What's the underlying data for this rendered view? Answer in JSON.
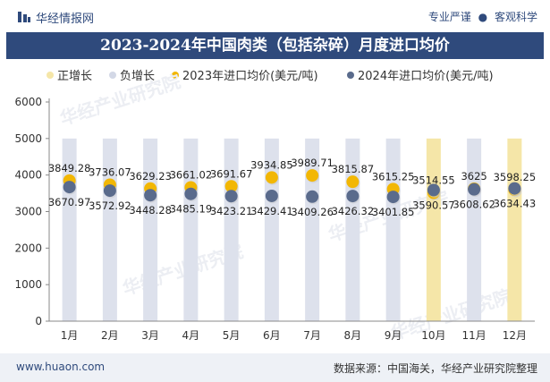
{
  "header": {
    "brand": "华经情报网",
    "slogan_left": "专业严谨",
    "slogan_dot": "●",
    "slogan_right": "客观科学"
  },
  "title": "2023-2024年中国肉类（包括杂碎）月度进口均价",
  "legend": [
    {
      "label": "正增长",
      "color": "#f5e6a8"
    },
    {
      "label": "负增长",
      "color": "#d3d8e6"
    },
    {
      "label": "2023年进口均价(美元/吨)",
      "color": "#f2b705"
    },
    {
      "label": "2024年进口均价(美元/吨)",
      "color": "#5a6b8c"
    }
  ],
  "footer": {
    "url": "www.huaon.com",
    "source": "数据来源：中国海关，华经产业研究院整理"
  },
  "watermark": "华经产业研究院",
  "colors": {
    "navy": "#2f4a7c",
    "positive_bar": "#f5e6a8",
    "negative_bar": "#dde1ec",
    "dot_2023": "#f2b705",
    "dot_2024": "#5a6b8c"
  },
  "chart_data": {
    "type": "scatter",
    "categories": [
      "1月",
      "2月",
      "3月",
      "4月",
      "5月",
      "6月",
      "7月",
      "8月",
      "9月",
      "10月",
      "11月",
      "12月"
    ],
    "series": [
      {
        "name": "2023年进口均价(美元/吨)",
        "values": [
          3849.28,
          3736.07,
          3629.23,
          3661.02,
          3691.67,
          3934.85,
          3989.71,
          3815.87,
          3615.25,
          3514.55,
          3625,
          3598.25
        ]
      },
      {
        "name": "2024年进口均价(美元/吨)",
        "values": [
          3670.97,
          3572.92,
          3448.28,
          3485.19,
          3423.21,
          3429.41,
          3409.26,
          3426.32,
          3401.85,
          3590.57,
          3608.62,
          3634.43
        ]
      }
    ],
    "value_labels_2023": [
      "3849.28",
      "3736.07",
      "3629.23",
      "3661.02",
      "3691.67",
      "3934.85",
      "3989.71",
      "3815.87",
      "3615.25",
      "3514.55",
      "3625",
      "3598.25"
    ],
    "value_labels_2024": [
      "3670.97",
      "3572.92",
      "3448.28",
      "3485.19",
      "3423.21",
      "3429.41",
      "3409.26",
      "3426.32",
      "3401.85",
      "3590.57",
      "3608.62",
      "3634.43"
    ],
    "change_direction": [
      "negative",
      "negative",
      "negative",
      "negative",
      "negative",
      "negative",
      "negative",
      "negative",
      "negative",
      "positive",
      "negative",
      "positive"
    ],
    "yticks": [
      "0",
      "1000",
      "2000",
      "3000",
      "4000",
      "5000",
      "6000"
    ],
    "ylim": [
      0,
      6000
    ],
    "grid": false,
    "legend_position": "top"
  }
}
